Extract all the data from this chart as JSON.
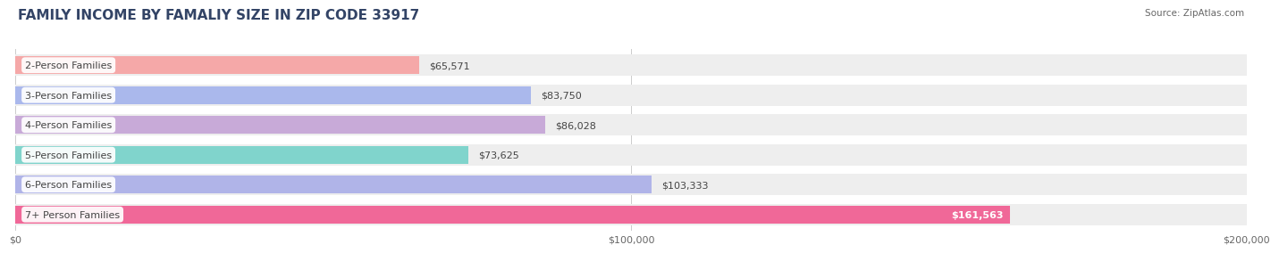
{
  "title": "FAMILY INCOME BY FAMALIY SIZE IN ZIP CODE 33917",
  "source": "Source: ZipAtlas.com",
  "categories": [
    "2-Person Families",
    "3-Person Families",
    "4-Person Families",
    "5-Person Families",
    "6-Person Families",
    "7+ Person Families"
  ],
  "values": [
    65571,
    83750,
    86028,
    73625,
    103333,
    161563
  ],
  "labels": [
    "$65,571",
    "$83,750",
    "$86,028",
    "$73,625",
    "$103,333",
    "$161,563"
  ],
  "bar_colors": [
    "#f5a8a8",
    "#aab8ec",
    "#c8aad8",
    "#80d4cc",
    "#b0b4e8",
    "#f06898"
  ],
  "bar_bg_color": "#eeeeee",
  "xlim": [
    0,
    200000
  ],
  "xticks": [
    0,
    100000,
    200000
  ],
  "xticklabels": [
    "$0",
    "$100,000",
    "$200,000"
  ],
  "title_fontsize": 11,
  "label_fontsize": 8,
  "tick_fontsize": 8,
  "source_fontsize": 7.5,
  "background_color": "#ffffff"
}
